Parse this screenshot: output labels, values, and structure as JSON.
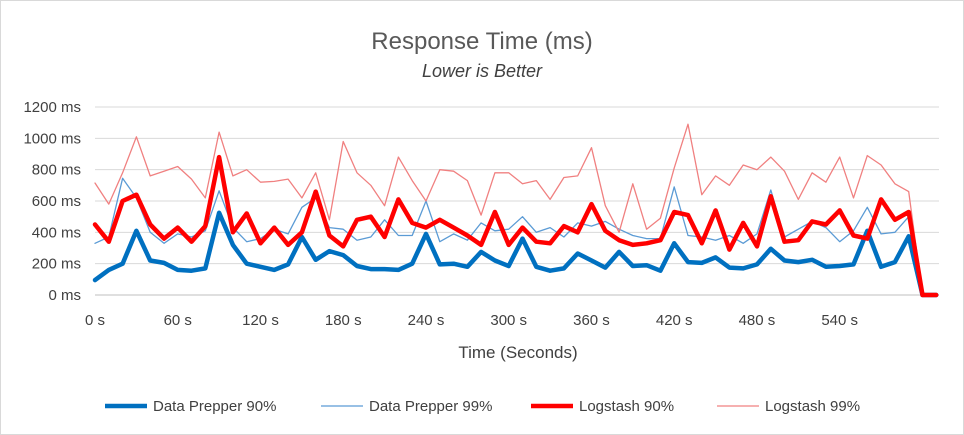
{
  "chart_data": {
    "type": "line",
    "title": "Response Time (ms)",
    "subtitle": "Lower is Better",
    "xlabel": "Time (Seconds)",
    "ylabel": "",
    "xlim": [
      0,
      612
    ],
    "ylim": [
      0,
      1200
    ],
    "grid": true,
    "legend_position": "bottom",
    "x_tick_values": [
      0,
      60,
      120,
      180,
      240,
      300,
      360,
      420,
      480,
      540
    ],
    "x_tick_labels": [
      "0 s",
      "60 s",
      "120 s",
      "180 s",
      "240 s",
      "300 s",
      "360 s",
      "420 s",
      "480 s",
      "540 s"
    ],
    "y_tick_values": [
      0,
      200,
      400,
      600,
      800,
      1000,
      1200
    ],
    "y_tick_labels": [
      "0 ms",
      "200 ms",
      "400 ms",
      "600 ms",
      "800 ms",
      "1000 ms",
      "1200 ms"
    ],
    "x": [
      0,
      10,
      20,
      30,
      40,
      50,
      60,
      70,
      80,
      90,
      100,
      110,
      120,
      130,
      140,
      150,
      160,
      170,
      180,
      190,
      200,
      210,
      220,
      230,
      240,
      250,
      260,
      270,
      280,
      290,
      300,
      310,
      320,
      330,
      340,
      350,
      360,
      370,
      380,
      390,
      400,
      410,
      420,
      430,
      440,
      450,
      460,
      470,
      480,
      490,
      500,
      510,
      520,
      530,
      540,
      550,
      560,
      570,
      580,
      590,
      600,
      610
    ],
    "series": [
      {
        "name": "Data Prepper 90%",
        "color": "#0070c0",
        "width": 4.5,
        "values": [
          95,
          160,
          200,
          410,
          220,
          205,
          160,
          155,
          170,
          525,
          320,
          200,
          180,
          160,
          195,
          370,
          225,
          280,
          255,
          185,
          165,
          165,
          160,
          200,
          390,
          195,
          200,
          180,
          275,
          220,
          185,
          360,
          180,
          155,
          170,
          265,
          220,
          175,
          275,
          185,
          190,
          155,
          330,
          210,
          205,
          240,
          175,
          170,
          195,
          295,
          220,
          210,
          225,
          180,
          185,
          195,
          410,
          180,
          210,
          375,
          0,
          0
        ]
      },
      {
        "name": "Data Prepper 99%",
        "color": "#5b9bd5",
        "width": 1.3,
        "values": [
          330,
          370,
          745,
          620,
          400,
          330,
          390,
          370,
          410,
          665,
          430,
          340,
          360,
          420,
          390,
          560,
          620,
          430,
          420,
          350,
          370,
          480,
          380,
          380,
          600,
          340,
          390,
          350,
          460,
          410,
          420,
          500,
          400,
          430,
          370,
          460,
          440,
          470,
          420,
          380,
          360,
          360,
          690,
          380,
          370,
          350,
          380,
          330,
          390,
          670,
          370,
          420,
          470,
          430,
          340,
          410,
          560,
          390,
          400,
          500,
          0,
          0
        ]
      },
      {
        "name": "Logstash 90%",
        "color": "#ff0000",
        "width": 4.5,
        "values": [
          450,
          340,
          600,
          640,
          450,
          360,
          430,
          340,
          440,
          880,
          400,
          520,
          330,
          430,
          320,
          400,
          660,
          380,
          310,
          480,
          500,
          370,
          610,
          460,
          430,
          480,
          430,
          380,
          320,
          530,
          320,
          430,
          340,
          330,
          440,
          400,
          580,
          410,
          350,
          320,
          330,
          350,
          530,
          510,
          330,
          540,
          290,
          460,
          310,
          630,
          340,
          350,
          470,
          450,
          540,
          380,
          360,
          610,
          480,
          530,
          0,
          0
        ]
      },
      {
        "name": "Logstash 99%",
        "color": "#f08080",
        "width": 1.3,
        "values": [
          715,
          580,
          780,
          1010,
          760,
          790,
          820,
          740,
          620,
          1040,
          760,
          800,
          720,
          725,
          740,
          620,
          780,
          480,
          980,
          780,
          700,
          570,
          880,
          730,
          600,
          800,
          790,
          730,
          510,
          780,
          780,
          710,
          730,
          610,
          750,
          760,
          940,
          570,
          400,
          710,
          420,
          490,
          810,
          1090,
          640,
          760,
          700,
          830,
          800,
          880,
          790,
          610,
          780,
          720,
          880,
          620,
          890,
          830,
          710,
          660,
          0,
          0
        ]
      }
    ]
  }
}
